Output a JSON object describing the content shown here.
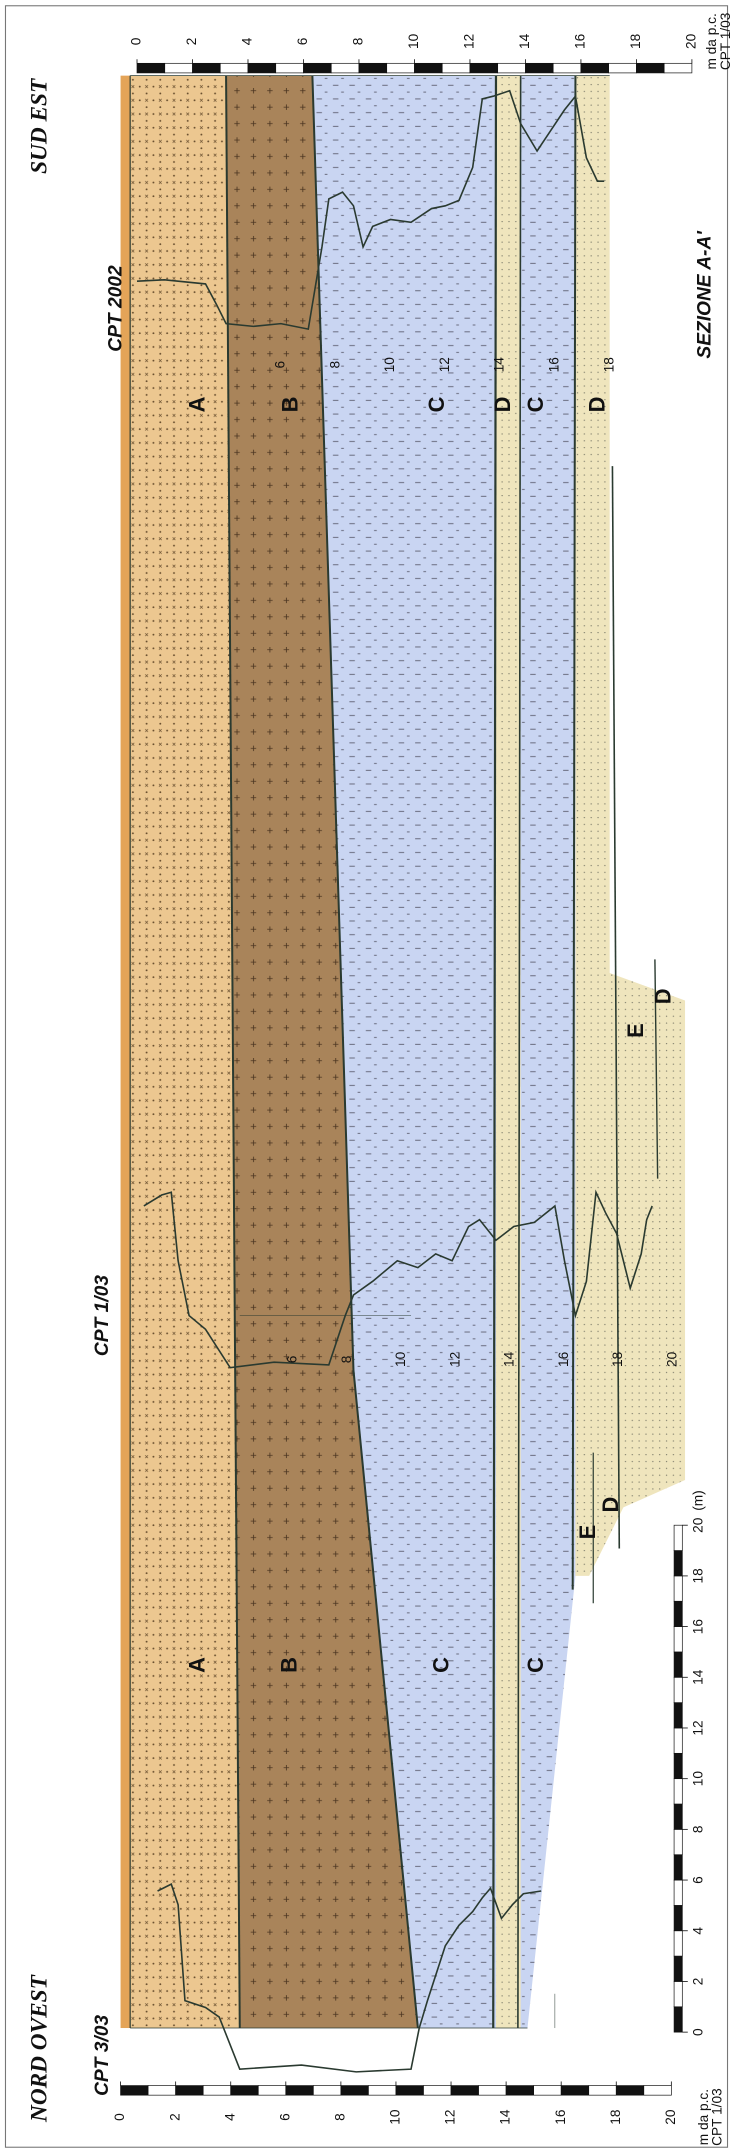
{
  "header": {
    "title": "SEZIONE A-A'",
    "north_west": "NORD OVEST",
    "south_east": "SUD EST"
  },
  "cpts": [
    {
      "label": "CPT 2002",
      "depths": [
        6,
        8,
        10,
        12,
        14,
        16,
        18
      ]
    },
    {
      "label": "CPT 1/03",
      "depths": [
        6,
        8,
        10,
        12,
        14,
        16,
        18,
        20
      ]
    },
    {
      "label": "CPT 3/03"
    }
  ],
  "layer_labels": [
    "A",
    "B",
    "C",
    "D",
    "C",
    "D",
    "E",
    "D",
    "E",
    "D",
    "A",
    "B",
    "C",
    "C"
  ],
  "depth_scale": {
    "ticks": [
      0,
      2,
      4,
      6,
      8,
      10,
      12,
      14,
      16,
      18,
      20
    ],
    "unit": "m da p.c.",
    "reference": "CPT 1/03"
  },
  "length_scale": {
    "ticks": [
      0,
      2,
      4,
      6,
      8,
      10,
      12,
      14,
      16,
      18,
      20
    ],
    "unit": "(m)"
  }
}
